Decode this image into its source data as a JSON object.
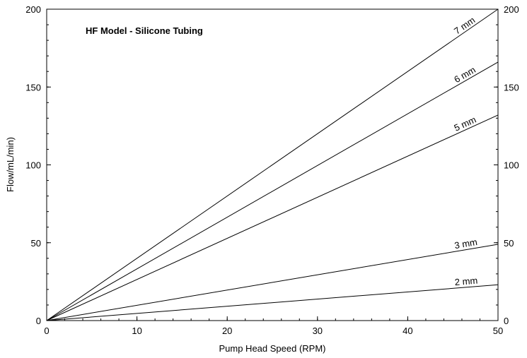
{
  "chart_data": {
    "type": "line",
    "title": "HF Model - Silicone Tubing",
    "xlabel": "Pump Head Speed (RPM)",
    "ylabel": "Flow/mL/min)",
    "xlim": [
      0,
      50
    ],
    "ylim": [
      0,
      200
    ],
    "x_ticks": [
      "0",
      "10",
      "20",
      "30",
      "40",
      "50"
    ],
    "y_ticks": [
      "0",
      "50",
      "100",
      "150",
      "200"
    ],
    "y2_ticks": [
      "0",
      "50",
      "100",
      "150",
      "200"
    ],
    "grid": false,
    "legend": "none",
    "series": [
      {
        "name": "2 mm",
        "x": [
          0,
          50
        ],
        "y": [
          0,
          23
        ]
      },
      {
        "name": "3 mm",
        "x": [
          0,
          50
        ],
        "y": [
          0,
          49
        ]
      },
      {
        "name": "5 mm",
        "x": [
          0,
          50
        ],
        "y": [
          0,
          132
        ]
      },
      {
        "name": "6 mm",
        "x": [
          0,
          50
        ],
        "y": [
          0,
          166
        ]
      },
      {
        "name": "7 mm",
        "x": [
          0,
          50
        ],
        "y": [
          0,
          200
        ]
      }
    ]
  }
}
